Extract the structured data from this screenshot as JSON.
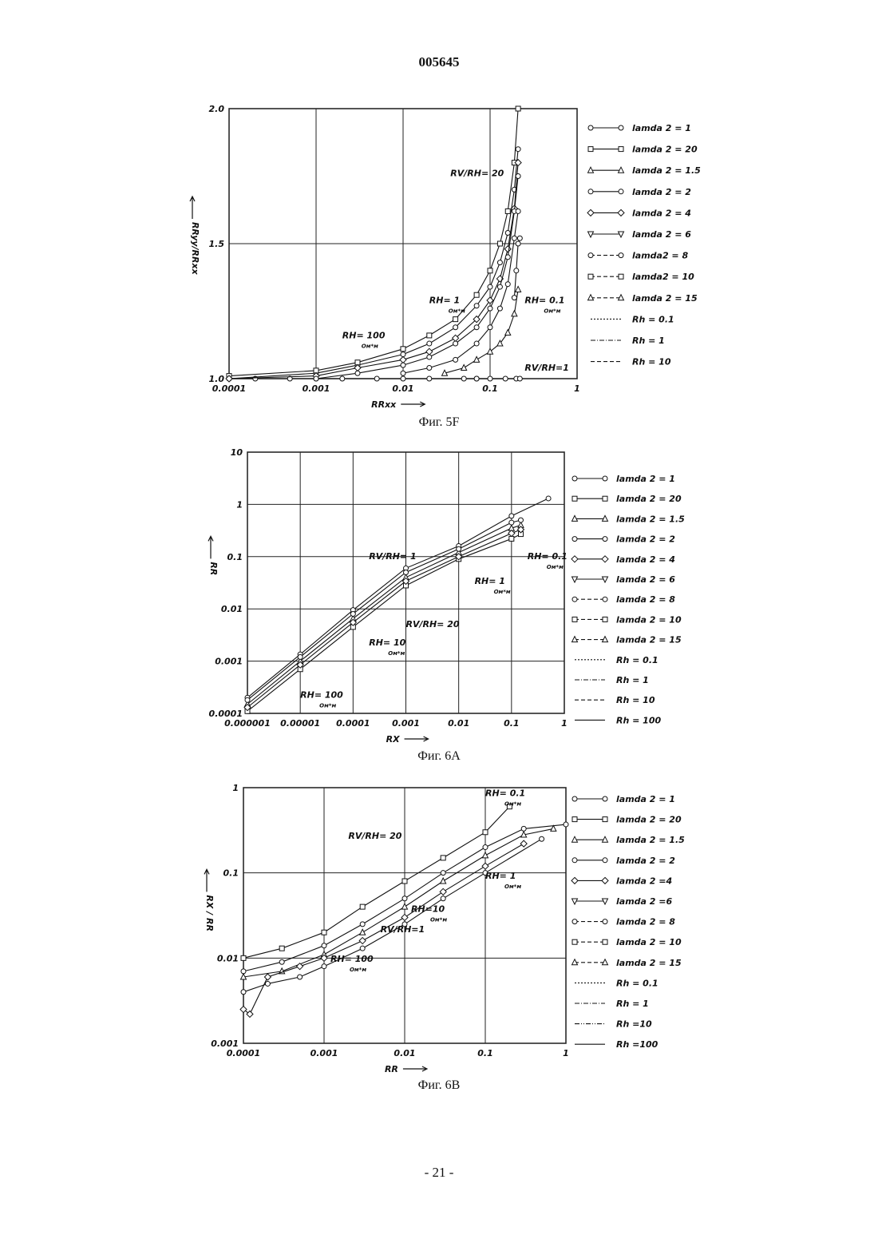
{
  "header": {
    "document_number": "005645"
  },
  "footer": {
    "page_label": "- 21 -"
  },
  "legends": {
    "fig5f": {
      "entries": [
        {
          "label": "lamda 2 = 1",
          "marker": "circle",
          "dash": "solid"
        },
        {
          "label": "lamda 2 = 20",
          "marker": "square",
          "dash": "solid"
        },
        {
          "label": "lamda 2 = 1.5",
          "marker": "triangle",
          "dash": "solid"
        },
        {
          "label": "lamda 2 = 2",
          "marker": "circle",
          "dash": "solid"
        },
        {
          "label": "lamda 2 = 4",
          "marker": "diamond",
          "dash": "solid"
        },
        {
          "label": "lamda 2 = 6",
          "marker": "triangle-down",
          "dash": "solid"
        },
        {
          "label": "lamda2 = 8",
          "marker": "circle",
          "dash": "dash"
        },
        {
          "label": "lamda2 = 10",
          "marker": "square",
          "dash": "dash"
        },
        {
          "label": "lamda 2 = 15",
          "marker": "triangle",
          "dash": "dash"
        },
        {
          "label": "Rh = 0.1",
          "marker": "none",
          "dash": "dot"
        },
        {
          "label": "Rh = 1",
          "marker": "none",
          "dash": "dashdot"
        },
        {
          "label": "Rh = 10",
          "marker": "none",
          "dash": "dash"
        }
      ]
    },
    "fig6a": {
      "entries": [
        {
          "label": "lamda 2 = 1",
          "marker": "circle",
          "dash": "solid"
        },
        {
          "label": "lamda 2 = 20",
          "marker": "square",
          "dash": "solid"
        },
        {
          "label": "lamda 2 = 1.5",
          "marker": "triangle",
          "dash": "solid"
        },
        {
          "label": "lamda 2 = 2",
          "marker": "circle",
          "dash": "solid"
        },
        {
          "label": "lamda 2 = 4",
          "marker": "diamond",
          "dash": "solid"
        },
        {
          "label": "lamda 2 = 6",
          "marker": "triangle-down",
          "dash": "solid"
        },
        {
          "label": "lamda 2 = 8",
          "marker": "circle",
          "dash": "dash"
        },
        {
          "label": "lamda 2 = 10",
          "marker": "square",
          "dash": "dash"
        },
        {
          "label": "lamda 2 = 15",
          "marker": "triangle",
          "dash": "dash"
        },
        {
          "label": "Rh = 0.1",
          "marker": "none",
          "dash": "dot"
        },
        {
          "label": "Rh = 1",
          "marker": "none",
          "dash": "dashdot"
        },
        {
          "label": "Rh = 10",
          "marker": "none",
          "dash": "dash"
        },
        {
          "label": "Rh = 100",
          "marker": "none",
          "dash": "solid"
        }
      ]
    },
    "fig6b": {
      "entries": [
        {
          "label": "lamda 2 = 1",
          "marker": "circle",
          "dash": "solid"
        },
        {
          "label": "lamda 2 = 20",
          "marker": "square",
          "dash": "solid"
        },
        {
          "label": "lamda 2 = 1.5",
          "marker": "triangle",
          "dash": "solid"
        },
        {
          "label": "lamda 2 = 2",
          "marker": "circle",
          "dash": "solid"
        },
        {
          "label": "lamda 2 =4",
          "marker": "diamond",
          "dash": "solid"
        },
        {
          "label": "lamda 2 =6",
          "marker": "triangle-down",
          "dash": "solid"
        },
        {
          "label": "lamda 2 = 8",
          "marker": "circle",
          "dash": "dash"
        },
        {
          "label": "lamda 2 = 10",
          "marker": "square",
          "dash": "dash"
        },
        {
          "label": "lamda 2 = 15",
          "marker": "triangle",
          "dash": "dash"
        },
        {
          "label": "Rh = 0.1",
          "marker": "none",
          "dash": "dot"
        },
        {
          "label": "Rh = 1",
          "marker": "none",
          "dash": "dashdot"
        },
        {
          "label": "Rh =10",
          "marker": "none",
          "dash": "dashdotdot"
        },
        {
          "label": "Rh =100",
          "marker": "none",
          "dash": "solid"
        }
      ]
    }
  },
  "chart_data": [
    {
      "id": "fig5f",
      "type": "line",
      "caption": "Фиг. 5F",
      "xlabel": "RRxx",
      "ylabel": "RRyy/RRxx",
      "xscale": "log",
      "yscale": "linear",
      "xlim": [
        0.0001,
        1
      ],
      "ylim": [
        1.0,
        2.0
      ],
      "xticks": [
        0.0001,
        0.001,
        0.01,
        0.1,
        1
      ],
      "xtick_labels": [
        "0.0001",
        "0.001",
        "0.01",
        "0.1",
        "1"
      ],
      "yticks": [
        1.0,
        1.5,
        2.0
      ],
      "ytick_labels": [
        "1.0",
        "1.5",
        "2.0"
      ],
      "grid": true,
      "legend_position": "right",
      "annotations": [
        {
          "text": "RV/RH= 20",
          "x": 0.035,
          "y": 1.75
        },
        {
          "text": "RH= 1",
          "sub": "Ом*м",
          "x": 0.02,
          "y": 1.28
        },
        {
          "text": "RH= 0.1",
          "sub": "Ом*м",
          "x": 0.25,
          "y": 1.28
        },
        {
          "text": "RH= 100",
          "sub": "Ом*м",
          "x": 0.002,
          "y": 1.15
        },
        {
          "text": "RV/RH=1",
          "x": 0.25,
          "y": 1.03
        }
      ],
      "series": [
        {
          "marker": "circle",
          "x": [
            0.0001,
            0.0002,
            0.0005,
            0.001,
            0.002,
            0.005,
            0.01,
            0.02,
            0.05,
            0.07
          ],
          "y": [
            1.0,
            1.0,
            1.0,
            1.0,
            1.0,
            1.0,
            1.0,
            1.0,
            1.0,
            1.0
          ]
        },
        {
          "marker": "circle",
          "x": [
            0.07,
            0.1,
            0.15,
            0.2,
            0.22
          ],
          "y": [
            1.0,
            1.0,
            1.0,
            1.0,
            1.0
          ]
        },
        {
          "marker": "circle",
          "x": [
            0.0001,
            0.001,
            0.003,
            0.01,
            0.02,
            0.04,
            0.07,
            0.1,
            0.13,
            0.16,
            0.19,
            0.21
          ],
          "y": [
            1.0,
            1.02,
            1.05,
            1.09,
            1.13,
            1.19,
            1.27,
            1.34,
            1.43,
            1.54,
            1.7,
            1.85
          ]
        },
        {
          "marker": "square",
          "x": [
            0.0001,
            0.001,
            0.003,
            0.01,
            0.02,
            0.04,
            0.07,
            0.1,
            0.13,
            0.16,
            0.19,
            0.21
          ],
          "y": [
            1.01,
            1.03,
            1.06,
            1.11,
            1.16,
            1.22,
            1.31,
            1.4,
            1.5,
            1.62,
            1.8,
            2.0
          ]
        },
        {
          "marker": "diamond",
          "x": [
            0.0001,
            0.001,
            0.003,
            0.01,
            0.02,
            0.04,
            0.07,
            0.1,
            0.13,
            0.16,
            0.19,
            0.21
          ],
          "y": [
            1.0,
            1.01,
            1.04,
            1.07,
            1.1,
            1.15,
            1.22,
            1.29,
            1.37,
            1.48,
            1.63,
            1.8
          ]
        },
        {
          "marker": "circle",
          "x": [
            0.001,
            0.003,
            0.01,
            0.02,
            0.04,
            0.07,
            0.1,
            0.13,
            0.16,
            0.19,
            0.21
          ],
          "y": [
            1.0,
            1.02,
            1.05,
            1.08,
            1.13,
            1.19,
            1.26,
            1.34,
            1.45,
            1.62,
            1.75
          ]
        },
        {
          "marker": "circle",
          "x": [
            0.01,
            0.02,
            0.04,
            0.07,
            0.1,
            0.13,
            0.16,
            0.19,
            0.21
          ],
          "y": [
            1.02,
            1.04,
            1.07,
            1.13,
            1.19,
            1.26,
            1.35,
            1.52,
            1.62
          ]
        },
        {
          "marker": "triangle",
          "x": [
            0.03,
            0.05,
            0.07,
            0.1,
            0.13,
            0.16,
            0.19,
            0.21
          ],
          "y": [
            1.02,
            1.04,
            1.07,
            1.1,
            1.13,
            1.17,
            1.24,
            1.33
          ]
        },
        {
          "marker": "circle",
          "x": [
            0.19,
            0.2,
            0.21,
            0.22
          ],
          "y": [
            1.3,
            1.4,
            1.5,
            1.52
          ]
        }
      ]
    },
    {
      "id": "fig6a",
      "type": "line",
      "caption": "Фиг. 6А",
      "xlabel": "RX",
      "ylabel": "RR",
      "xscale": "log",
      "yscale": "log",
      "xlim": [
        1e-06,
        1
      ],
      "ylim": [
        0.0001,
        10
      ],
      "xticks": [
        1e-06,
        1e-05,
        0.0001,
        0.001,
        0.01,
        0.1,
        1
      ],
      "xtick_labels": [
        "0.000001",
        "0.00001",
        "0.0001",
        "0.001",
        "0.01",
        "0.1",
        "1"
      ],
      "yticks": [
        0.0001,
        0.001,
        0.01,
        0.1,
        1,
        10
      ],
      "ytick_labels": [
        "0.0001",
        "0.001",
        "0.01",
        "0.1",
        "1",
        "10"
      ],
      "grid": true,
      "legend_position": "right",
      "annotations": [
        {
          "text": "RV/RH= 1",
          "x": 0.0002,
          "y": 0.09
        },
        {
          "text": "RH= 0.1",
          "sub": "Ом*м",
          "x": 0.2,
          "y": 0.09
        },
        {
          "text": "RH= 1",
          "sub": "Ом*м",
          "x": 0.02,
          "y": 0.03
        },
        {
          "text": "RV/RH= 20",
          "x": 0.001,
          "y": 0.0045
        },
        {
          "text": "RH= 10",
          "sub": "Ом*м",
          "x": 0.0002,
          "y": 0.002
        },
        {
          "text": "RH= 100",
          "sub": "Ом*м",
          "x": 1e-05,
          "y": 0.0002
        }
      ],
      "series": [
        {
          "marker": "circle",
          "x": [
            1e-06,
            1e-05,
            0.0001,
            0.001,
            0.01,
            0.1,
            0.5
          ],
          "y": [
            0.0002,
            0.00135,
            0.0095,
            0.06,
            0.16,
            0.6,
            1.3
          ]
        },
        {
          "marker": "square",
          "x": [
            1e-06,
            1e-05,
            0.0001,
            0.001,
            0.01,
            0.1,
            0.15
          ],
          "y": [
            0.00011,
            0.0007,
            0.0045,
            0.028,
            0.09,
            0.22,
            0.27
          ]
        },
        {
          "marker": "triangle",
          "x": [
            1e-06,
            1e-05,
            0.0001,
            0.001,
            0.01,
            0.1,
            0.15
          ],
          "y": [
            0.00015,
            0.001,
            0.0065,
            0.04,
            0.12,
            0.35,
            0.4
          ]
        },
        {
          "marker": "diamond",
          "x": [
            1e-06,
            1e-05,
            0.0001,
            0.001,
            0.01,
            0.1,
            0.15
          ],
          "y": [
            0.00013,
            0.00085,
            0.0055,
            0.034,
            0.1,
            0.28,
            0.33
          ]
        },
        {
          "marker": "circle",
          "x": [
            1e-06,
            1e-05,
            0.0001,
            0.001,
            0.01,
            0.1,
            0.15
          ],
          "y": [
            0.00018,
            0.0012,
            0.008,
            0.05,
            0.14,
            0.45,
            0.5
          ]
        }
      ]
    },
    {
      "id": "fig6b",
      "type": "line",
      "caption": "Фиг. 6В",
      "xlabel": "RR",
      "ylabel": "RX / RR",
      "xscale": "log",
      "yscale": "log",
      "xlim": [
        0.0001,
        1
      ],
      "ylim": [
        0.001,
        1
      ],
      "xticks": [
        0.0001,
        0.001,
        0.01,
        0.1,
        1
      ],
      "xtick_labels": [
        "0.0001",
        "0.001",
        "0.01",
        "0.1",
        "1"
      ],
      "yticks": [
        0.001,
        0.01,
        0.1,
        1
      ],
      "ytick_labels": [
        "0.001",
        "0.01",
        "0.1",
        "1"
      ],
      "grid": true,
      "legend_position": "right",
      "annotations": [
        {
          "text": "RH= 0.1",
          "sub": "Ом*м",
          "x": 0.1,
          "y": 0.8
        },
        {
          "text": "RV/RH= 20",
          "x": 0.002,
          "y": 0.25
        },
        {
          "text": "RH= 1",
          "sub": "Ом*м",
          "x": 0.1,
          "y": 0.085
        },
        {
          "text": "RH=10",
          "sub": "Ом*м",
          "x": 0.012,
          "y": 0.035
        },
        {
          "text": "RV/RH=1",
          "x": 0.005,
          "y": 0.02
        },
        {
          "text": "RH= 100",
          "sub": "Ом*м",
          "x": 0.0012,
          "y": 0.009
        }
      ],
      "series": [
        {
          "marker": "square",
          "x": [
            0.0001,
            0.0003,
            0.001,
            0.003,
            0.01,
            0.03,
            0.1,
            0.2
          ],
          "y": [
            0.01,
            0.013,
            0.02,
            0.04,
            0.08,
            0.15,
            0.3,
            0.6
          ]
        },
        {
          "marker": "circle",
          "x": [
            0.0001,
            0.0003,
            0.001,
            0.003,
            0.01,
            0.03,
            0.1,
            0.3,
            1
          ],
          "y": [
            0.007,
            0.009,
            0.014,
            0.025,
            0.05,
            0.1,
            0.2,
            0.33,
            0.37
          ]
        },
        {
          "marker": "triangle",
          "x": [
            0.0001,
            0.0003,
            0.001,
            0.003,
            0.01,
            0.03,
            0.1,
            0.3,
            0.7
          ],
          "y": [
            0.006,
            0.007,
            0.011,
            0.02,
            0.04,
            0.08,
            0.16,
            0.28,
            0.33
          ]
        },
        {
          "marker": "diamond",
          "x": [
            0.0001,
            0.00012,
            0.0002,
            0.0005,
            0.001,
            0.003,
            0.01,
            0.03,
            0.1,
            0.3
          ],
          "y": [
            0.0025,
            0.0022,
            0.006,
            0.008,
            0.01,
            0.016,
            0.03,
            0.06,
            0.12,
            0.22
          ]
        },
        {
          "marker": "circle",
          "x": [
            0.0001,
            0.0002,
            0.0005,
            0.001,
            0.003,
            0.01,
            0.03,
            0.1,
            0.5
          ],
          "y": [
            0.004,
            0.005,
            0.006,
            0.008,
            0.013,
            0.025,
            0.05,
            0.1,
            0.25
          ]
        }
      ]
    }
  ]
}
